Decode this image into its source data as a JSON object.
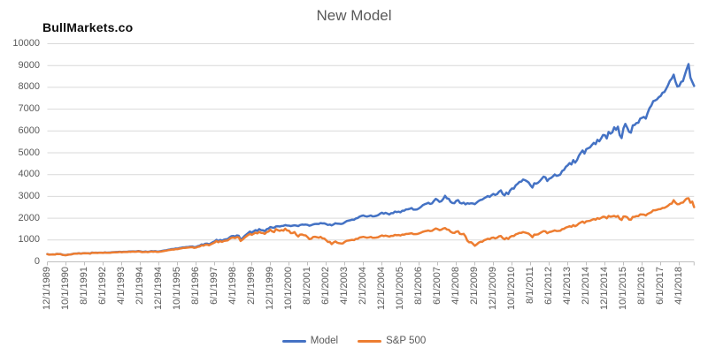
{
  "watermark": "BullMarkets.co",
  "chart_data": {
    "type": "line",
    "title": "New Model",
    "x_axis": {
      "start": "12/1/1989",
      "end": "12/1/2018",
      "point_interval_months": 1,
      "tick_interval_months": 10,
      "tick_labels": [
        "12/1/1989",
        "10/1/1990",
        "8/1/1991",
        "6/1/1992",
        "4/1/1993",
        "2/1/1994",
        "12/1/1994",
        "10/1/1995",
        "8/1/1996",
        "6/1/1997",
        "4/1/1998",
        "2/1/1999",
        "12/1/1999",
        "10/1/2000",
        "8/1/2001",
        "6/1/2002",
        "4/1/2003",
        "2/1/2004",
        "12/1/2004",
        "10/1/2005",
        "8/1/2006",
        "6/1/2007",
        "4/1/2008",
        "2/1/2009",
        "12/1/2009",
        "10/1/2010",
        "8/1/2011",
        "6/1/2012",
        "4/1/2013",
        "2/1/2014",
        "12/1/2014",
        "10/1/2015",
        "8/1/2016",
        "6/1/2017",
        "4/1/2018"
      ]
    },
    "y_ticks": [
      0,
      1000,
      2000,
      3000,
      4000,
      5000,
      6000,
      7000,
      8000,
      9000,
      10000
    ],
    "ylim": [
      0,
      10000
    ],
    "grid": "horizontal",
    "legend_position": "bottom",
    "colors": {
      "grid": "#d9d9d9",
      "axis": "#bfbfbf",
      "text": "#595959"
    },
    "series": [
      {
        "name": "Model",
        "color": "#4472c4",
        "values": [
          355,
          331,
          334,
          342,
          334,
          364,
          362,
          360,
          327,
          310,
          308,
          326,
          334,
          348,
          371,
          380,
          380,
          395,
          376,
          393,
          401,
          394,
          398,
          381,
          424,
          416,
          420,
          411,
          422,
          423,
          416,
          432,
          422,
          427,
          428,
          440,
          446,
          449,
          453,
          463,
          451,
          461,
          463,
          460,
          477,
          472,
          481,
          475,
          480,
          497,
          482,
          461,
          466,
          472,
          459,
          474,
          492,
          480,
          489,
          471,
          477,
          488,
          506,
          521,
          536,
          555,
          568,
          586,
          586,
          610,
          608,
          632,
          644,
          665,
          670,
          676,
          685,
          701,
          704,
          672,
          685,
          722,
          742,
          797,
          781,
          829,
          835,
          800,
          847,
          897,
          937,
          1011,
          953,
          1005,
          971,
          1014,
          1031,
          1043,
          1117,
          1174,
          1185,
          1163,
          1210,
          1196,
          1022,
          1087,
          1175,
          1245,
          1315,
          1390,
          1345,
          1400,
          1455,
          1420,
          1500,
          1455,
          1445,
          1405,
          1495,
          1525,
          1595,
          1570,
          1558,
          1625,
          1630,
          1618,
          1645,
          1650,
          1685,
          1665,
          1660,
          1640,
          1660,
          1678,
          1660,
          1640,
          1688,
          1708,
          1700,
          1710,
          1695,
          1655,
          1680,
          1718,
          1738,
          1741,
          1736,
          1776,
          1761,
          1765,
          1731,
          1693,
          1707,
          1672,
          1717,
          1771,
          1751,
          1745,
          1737,
          1752,
          1811,
          1866,
          1886,
          1907,
          1937,
          1927,
          1987,
          2007,
          2071,
          2105,
          2125,
          2095,
          2075,
          2096,
          2126,
          2085,
          2091,
          2111,
          2141,
          2205,
          2251,
          2207,
          2247,
          2209,
          2169,
          2231,
          2231,
          2305,
          2281,
          2301,
          2271,
          2345,
          2345,
          2404,
          2409,
          2435,
          2465,
          2391,
          2391,
          2405,
          2455,
          2515,
          2595,
          2639,
          2669,
          2709,
          2651,
          2679,
          2794,
          2885,
          2835,
          2747,
          2781,
          2881,
          3029,
          2911,
          2891,
          2751,
          2697,
          2687,
          2797,
          2831,
          2703,
          2678,
          2713,
          2635,
          2689,
          2665,
          2685,
          2675,
          2645,
          2715,
          2785,
          2835,
          2855,
          2915,
          2965,
          3015,
          2975,
          3055,
          3115,
          3065,
          3105,
          3215,
          3275,
          3115,
          3045,
          3175,
          3105,
          3275,
          3365,
          3355,
          3505,
          3575,
          3665,
          3675,
          3775,
          3745,
          3695,
          3635,
          3505,
          3405,
          3605,
          3585,
          3625,
          3705,
          3805,
          3905,
          3875,
          3705,
          3805,
          3845,
          3915,
          4005,
          3945,
          3965,
          4005,
          4165,
          4215,
          4355,
          4425,
          4525,
          4465,
          4665,
          4545,
          4665,
          4865,
          4995,
          5105,
          4965,
          5165,
          5205,
          5245,
          5355,
          5455,
          5395,
          5595,
          5525,
          5665,
          5815,
          5805,
          5655,
          5955,
          5875,
          5935,
          6165,
          6055,
          6195,
          5805,
          5675,
          6125,
          6325,
          6155,
          5965,
          5925,
          6255,
          6275,
          6365,
          6375,
          6565,
          6605,
          6645,
          6565,
          6825,
          7045,
          7165,
          7365,
          7395,
          7445,
          7545,
          7605,
          7755,
          7785,
          7935,
          8105,
          8305,
          8405,
          8585,
          8255,
          8035,
          8065,
          8245,
          8285,
          8565,
          8835,
          9065,
          8455,
          8255,
          8065
        ]
      },
      {
        "name": "S&P 500",
        "color": "#ed7d31",
        "values": [
          353,
          329,
          332,
          340,
          331,
          361,
          358,
          356,
          323,
          306,
          304,
          322,
          330,
          344,
          367,
          375,
          375,
          390,
          371,
          388,
          395,
          388,
          392,
          375,
          417,
          409,
          413,
          404,
          415,
          415,
          408,
          424,
          414,
          418,
          419,
          431,
          436,
          439,
          443,
          452,
          440,
          450,
          451,
          448,
          464,
          459,
          468,
          462,
          466,
          482,
          467,
          446,
          451,
          457,
          444,
          458,
          475,
          463,
          472,
          454,
          459,
          470,
          487,
          501,
          515,
          533,
          545,
          562,
          562,
          584,
          582,
          605,
          616,
          636,
          640,
          646,
          654,
          669,
          671,
          640,
          652,
          687,
          705,
          757,
          741,
          786,
          791,
          757,
          801,
          848,
          885,
          954,
          899,
          947,
          915,
          955,
          970,
          980,
          1049,
          1102,
          1112,
          1091,
          1134,
          1121,
          957,
          1017,
          1099,
          1164,
          1229,
          1280,
          1238,
          1286,
          1335,
          1302,
          1373,
          1329,
          1320,
          1283,
          1363,
          1389,
          1469,
          1394,
          1366,
          1499,
          1452,
          1421,
          1455,
          1431,
          1518,
          1437,
          1429,
          1315,
          1320,
          1366,
          1240,
          1160,
          1249,
          1256,
          1224,
          1211,
          1134,
          1041,
          1060,
          1139,
          1148,
          1130,
          1107,
          1147,
          1077,
          1067,
          990,
          912,
          916,
          815,
          886,
          936,
          880,
          856,
          841,
          848,
          917,
          964,
          975,
          990,
          1008,
          996,
          1051,
          1058,
          1112,
          1131,
          1145,
          1126,
          1107,
          1121,
          1141,
          1102,
          1104,
          1115,
          1130,
          1174,
          1212,
          1181,
          1204,
          1181,
          1157,
          1192,
          1191,
          1234,
          1220,
          1229,
          1207,
          1249,
          1248,
          1280,
          1281,
          1295,
          1311,
          1270,
          1270,
          1277,
          1304,
          1336,
          1378,
          1401,
          1418,
          1438,
          1407,
          1421,
          1482,
          1531,
          1503,
          1455,
          1474,
          1527,
          1549,
          1481,
          1468,
          1379,
          1331,
          1323,
          1386,
          1400,
          1280,
          1267,
          1283,
          1166,
          969,
          896,
          903,
          826,
          735,
          798,
          873,
          919,
          919,
          987,
          1021,
          1057,
          1036,
          1096,
          1115,
          1074,
          1104,
          1169,
          1187,
          1089,
          1031,
          1102,
          1049,
          1141,
          1183,
          1181,
          1258,
          1286,
          1327,
          1326,
          1364,
          1345,
          1321,
          1292,
          1219,
          1131,
          1253,
          1247,
          1258,
          1312,
          1366,
          1408,
          1398,
          1310,
          1362,
          1379,
          1407,
          1441,
          1412,
          1416,
          1426,
          1498,
          1515,
          1569,
          1598,
          1631,
          1606,
          1686,
          1633,
          1682,
          1757,
          1806,
          1848,
          1783,
          1859,
          1872,
          1884,
          1924,
          1960,
          1931,
          2003,
          1972,
          2018,
          2068,
          2059,
          1995,
          2105,
          2068,
          2086,
          2107,
          2063,
          2104,
          1972,
          1920,
          2079,
          2080,
          2044,
          1940,
          1932,
          2060,
          2065,
          2097,
          2099,
          2174,
          2171,
          2168,
          2126,
          2199,
          2239,
          2279,
          2364,
          2363,
          2384,
          2412,
          2423,
          2470,
          2472,
          2519,
          2575,
          2648,
          2674,
          2824,
          2714,
          2641,
          2648,
          2705,
          2718,
          2816,
          2902,
          2914,
          2712,
          2760,
          2507
        ]
      }
    ]
  }
}
